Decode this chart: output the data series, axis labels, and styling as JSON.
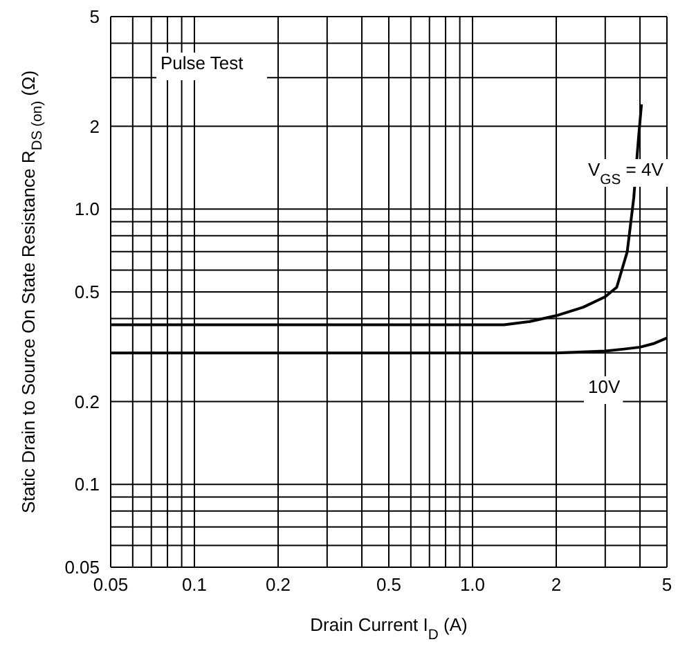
{
  "chart_data": {
    "type": "line",
    "xlabel": "Drain Current  I$_{D}$  (A)",
    "ylabel": "Static Drain to Source On State Resistance  R$_{DS (on)}$  (Ω)",
    "log": "xy",
    "grid": true,
    "marker": "none",
    "line_style": "solid",
    "xlim": [
      0.05,
      5
    ],
    "xticks": [
      0.05,
      {
        "value": 0.06,
        "label": null
      },
      {
        "value": 0.07,
        "label": null
      },
      {
        "value": 0.08,
        "label": null
      },
      {
        "value": 0.09,
        "label": null
      },
      0.1,
      0.2,
      {
        "value": 0.3,
        "label": null
      },
      {
        "value": 0.4,
        "label": null
      },
      0.5,
      {
        "value": 0.6,
        "label": null
      },
      {
        "value": 0.7,
        "label": null
      },
      {
        "value": 0.8,
        "label": null
      },
      {
        "value": 0.9,
        "label": null
      },
      {
        "value": 1,
        "label": "1.0"
      },
      2,
      {
        "value": 3,
        "label": null
      },
      {
        "value": 4,
        "label": null
      },
      5
    ],
    "ylim": [
      0.05,
      5
    ],
    "yticks": [
      0.05,
      {
        "value": 0.06,
        "label": null
      },
      {
        "value": 0.07,
        "label": null
      },
      {
        "value": 0.08,
        "label": null
      },
      {
        "value": 0.09,
        "label": null
      },
      0.1,
      0.2,
      {
        "value": 0.3,
        "label": null
      },
      {
        "value": 0.4,
        "label": null
      },
      0.5,
      {
        "value": 0.6,
        "label": null
      },
      {
        "value": 0.7,
        "label": null
      },
      {
        "value": 0.8,
        "label": null
      },
      {
        "value": 0.9,
        "label": null
      },
      {
        "value": 1,
        "label": "1.0"
      },
      2,
      {
        "value": 3,
        "label": null
      },
      {
        "value": 4,
        "label": null
      },
      5
    ],
    "series": [
      {
        "color": "#000000",
        "x": [
          0.05,
          0.5,
          1,
          1.3,
          1.6,
          2,
          2.5,
          3,
          3.3,
          3.6,
          3.8,
          3.95,
          4.05
        ],
        "values": [
          0.38,
          0.38,
          0.38,
          0.38,
          0.39,
          0.41,
          0.44,
          0.48,
          0.52,
          0.7,
          1.1,
          1.8,
          2.4
        ]
      },
      {
        "color": "#000000",
        "x": [
          0.05,
          0.5,
          1,
          2,
          3,
          3.5,
          4,
          4.5,
          5
        ],
        "values": [
          0.3,
          0.3,
          0.3,
          0.3,
          0.305,
          0.31,
          0.315,
          0.325,
          0.34
        ]
      }
    ],
    "annotations": [
      "Pulse Test",
      "V$_{GS}$ = 4V",
      "10V"
    ]
  }
}
